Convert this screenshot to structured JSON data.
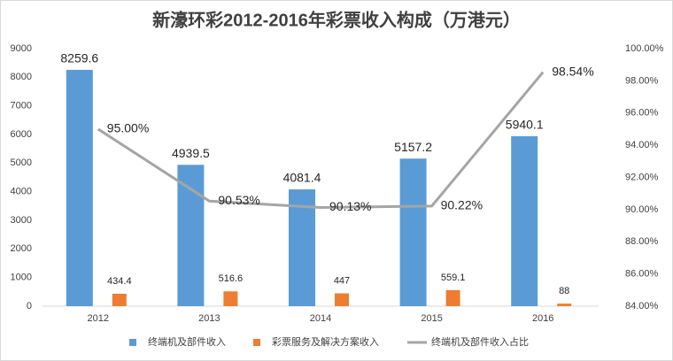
{
  "chart_data": {
    "type": "bar",
    "title": "新濠环彩2012-2016年彩票收入构成（万港元）",
    "categories": [
      "2012",
      "2013",
      "2014",
      "2015",
      "2016"
    ],
    "series": [
      {
        "name": "终端机及部件收入",
        "color": "#5b9bd5",
        "values": [
          8259.6,
          4939.5,
          4081.4,
          5157.2,
          5940.1
        ]
      },
      {
        "name": "彩票服务及解决方案收入",
        "color": "#ed7d31",
        "values": [
          434.4,
          516.6,
          447,
          559.1,
          88
        ]
      },
      {
        "name": "终端机及部件收入占比",
        "color": "#a5a5a5",
        "type": "line",
        "axis": "y2",
        "values": [
          95.0,
          90.53,
          90.13,
          90.22,
          98.54
        ],
        "value_labels": [
          "95.00%",
          "90.53%",
          "90.13%",
          "90.22%",
          "98.54%"
        ]
      }
    ],
    "ylim": [
      0,
      9000
    ],
    "yticks": [
      0,
      1000,
      2000,
      3000,
      4000,
      5000,
      6000,
      7000,
      8000,
      9000
    ],
    "y2lim": [
      84,
      100
    ],
    "y2ticks": [
      {
        "value": 84,
        "label": "84.00%"
      },
      {
        "value": 86,
        "label": "86.00%"
      },
      {
        "value": 88,
        "label": "88.00%"
      },
      {
        "value": 90,
        "label": "90.00%"
      },
      {
        "value": 92,
        "label": "92.00%"
      },
      {
        "value": 94,
        "label": "94.00%"
      },
      {
        "value": 96,
        "label": "96.00%"
      },
      {
        "value": 98,
        "label": "98.00%"
      },
      {
        "value": 100,
        "label": "100.00%"
      }
    ],
    "grid": false,
    "legend": "bottom"
  }
}
